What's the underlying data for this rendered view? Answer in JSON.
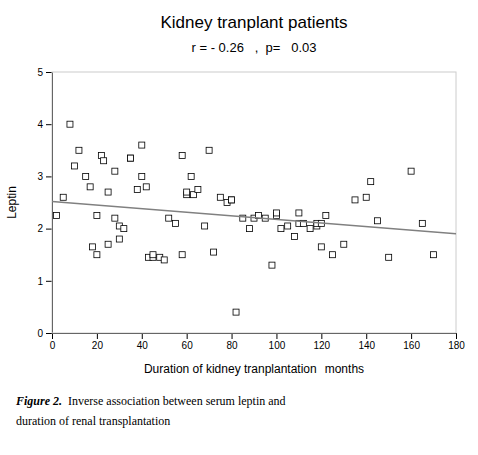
{
  "chart_data": {
    "type": "scatter",
    "title": "Kidney tranplant patients",
    "subtitle": "r = - 0.26   ,  p=   0.03",
    "xlabel": "Duration of kidney tranplantation",
    "xlabel_unit": "months",
    "ylabel": "Leptin",
    "caption": [
      "Figure 2.",
      "Inverse association between serum leptin and",
      "duration of renal transplantation"
    ],
    "xlim": [
      0,
      180
    ],
    "ylim": [
      0,
      5
    ],
    "xticks": [
      0,
      20,
      40,
      60,
      80,
      100,
      120,
      140,
      160,
      180
    ],
    "yticks": [
      0,
      1,
      2,
      3,
      4,
      5
    ],
    "series": [
      {
        "type": "scatter",
        "marker": "square",
        "x": [
          2,
          5,
          8,
          10,
          12,
          15,
          17,
          18,
          20,
          20,
          22,
          23,
          25,
          25,
          28,
          28,
          30,
          30,
          32,
          35,
          35,
          38,
          40,
          40,
          42,
          43,
          45,
          45,
          48,
          50,
          52,
          55,
          58,
          58,
          60,
          60,
          62,
          63,
          65,
          68,
          70,
          72,
          75,
          78,
          80,
          80,
          82,
          85,
          88,
          90,
          92,
          95,
          98,
          100,
          100,
          102,
          105,
          108,
          110,
          110,
          112,
          115,
          118,
          118,
          120,
          120,
          122,
          125,
          130,
          135,
          140,
          142,
          145,
          150,
          160,
          165,
          170
        ],
        "values": [
          2.25,
          2.6,
          4.0,
          3.2,
          3.5,
          3.0,
          2.8,
          1.65,
          2.25,
          1.5,
          3.4,
          3.3,
          2.7,
          1.7,
          2.2,
          3.1,
          1.8,
          2.05,
          2.0,
          3.35,
          3.35,
          2.75,
          3.6,
          3.0,
          2.8,
          1.45,
          1.45,
          1.5,
          1.45,
          1.4,
          2.2,
          2.1,
          3.4,
          1.5,
          2.65,
          2.7,
          3.0,
          2.65,
          2.75,
          2.05,
          3.5,
          1.55,
          2.6,
          2.5,
          2.55,
          2.55,
          0.4,
          2.2,
          2.0,
          2.2,
          2.25,
          2.2,
          1.3,
          2.25,
          2.3,
          2.0,
          2.05,
          1.85,
          2.1,
          2.3,
          2.1,
          2.0,
          2.05,
          2.1,
          2.1,
          1.65,
          2.25,
          1.5,
          1.7,
          2.55,
          2.6,
          2.9,
          2.15,
          1.45,
          3.1,
          2.1,
          1.5
        ]
      },
      {
        "type": "line",
        "color": "#808080",
        "x": [
          0,
          180
        ],
        "values": [
          2.52,
          1.9
        ]
      }
    ]
  }
}
